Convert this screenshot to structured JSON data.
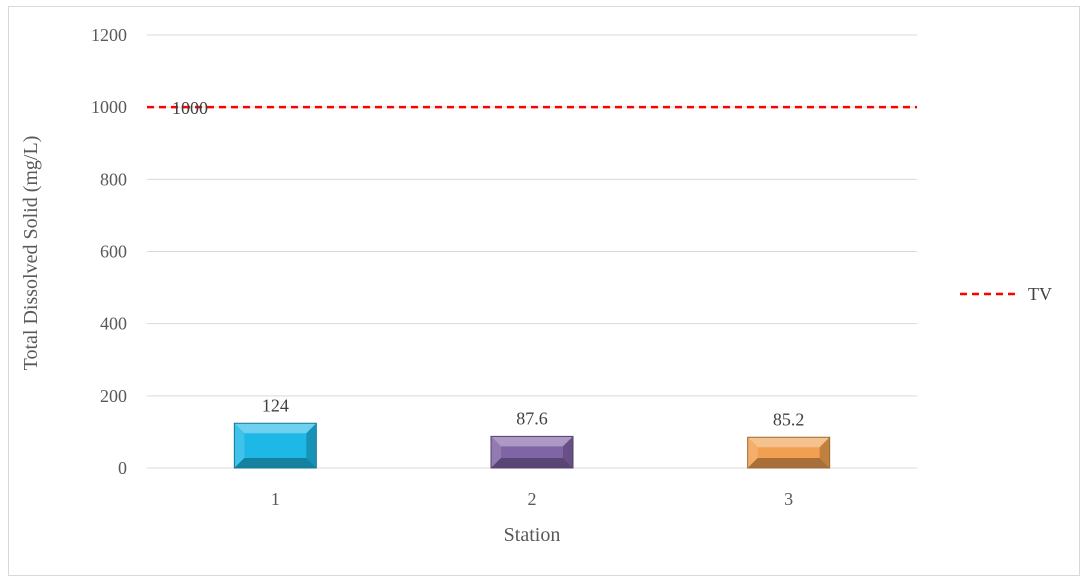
{
  "chart_data": {
    "type": "bar",
    "categories": [
      "1",
      "2",
      "3"
    ],
    "values": [
      124,
      87.6,
      85.2
    ],
    "data_labels": [
      "124",
      "87.6",
      "85.2"
    ],
    "bar_colors": [
      "#1eb8e6",
      "#7f64a6",
      "#f0a050"
    ],
    "ylabel": "Total Dissolved Solid (mg/L)",
    "xlabel": "Station",
    "ylim": [
      0,
      1200
    ],
    "y_ticks": [
      0,
      200,
      400,
      600,
      800,
      1000,
      1200
    ],
    "grid": true,
    "threshold": {
      "name": "TV",
      "value": 1000,
      "label": "1000",
      "color": "#ff0000",
      "style": "dashed"
    },
    "legend_position": "right"
  }
}
